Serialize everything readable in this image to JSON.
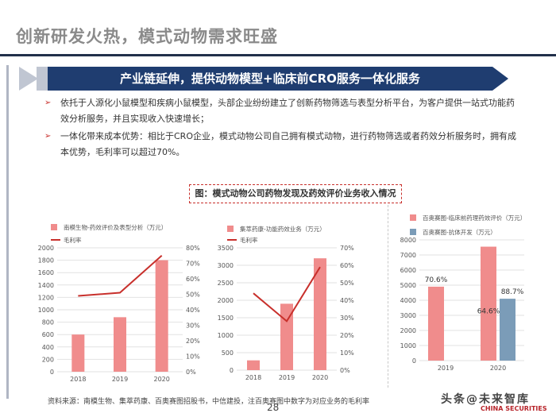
{
  "page": {
    "title": "创新研发火热，模式动物需求旺盛",
    "banner": "产业链延伸，提供动物模型+临床前CRO服务一体化服务",
    "bullets": [
      "依托于人源化小鼠模型和疾病小鼠模型，头部企业纷纷建立了创新药物筛选与表型分析平台，为客户提供一站式功能药效分析服务，并且实现收入快速增长；",
      "一体化带来成本优势：相比于CRO企业，模式动物公司自己拥有模式动物，进行药物筛选或者药效分析服务时，拥有成本优势，毛利率可以超过70%。"
    ],
    "bullet_marker": "➢",
    "figure_caption": "图：模式动物公司药物发现及药效评价业务收入情况",
    "source": "资料来源：南模生物、集萃药康、百奥赛图招股书，中信建投，注百奥赛图中数字为对应业务的毛利率",
    "page_number": "28",
    "watermark": "头条@未来智库",
    "watermark_sub": "CHINA SECURITIES",
    "colors": {
      "bar": "#f08c8c",
      "bar2": "#7b9cb8",
      "line": "#c8302c",
      "banner": "#1f3d70"
    }
  },
  "chart_data": [
    {
      "type": "bar",
      "categories": [
        "2018",
        "2019",
        "2020"
      ],
      "series": [
        {
          "name": "南模生物-药效评价及表型分析（万元）",
          "kind": "bar",
          "values": [
            600,
            880,
            1800
          ]
        },
        {
          "name": "毛利率",
          "kind": "line",
          "axis": "right",
          "values": [
            0.49,
            0.51,
            0.75
          ]
        }
      ],
      "ylim": [
        0,
        2000
      ],
      "yticks": [
        "0",
        "200",
        "400",
        "600",
        "800",
        "1000",
        "1200",
        "1400",
        "1600",
        "1800",
        "2000"
      ],
      "y2lim": [
        0,
        0.8
      ],
      "y2ticks": [
        "0%",
        "10%",
        "20%",
        "30%",
        "40%",
        "50%",
        "60%",
        "70%",
        "80%"
      ]
    },
    {
      "type": "bar",
      "categories": [
        "2018",
        "2019",
        "2020"
      ],
      "series": [
        {
          "name": "集萃药康-功能药效业务（万元）",
          "kind": "bar",
          "values": [
            280,
            1900,
            3200
          ]
        },
        {
          "name": "毛利率",
          "kind": "line",
          "axis": "right",
          "values": [
            0.44,
            0.28,
            0.59
          ]
        }
      ],
      "ylim": [
        0,
        3500
      ],
      "yticks": [
        "0",
        "500",
        "1000",
        "1500",
        "2000",
        "2500",
        "3000",
        "3500"
      ],
      "y2lim": [
        0,
        0.7
      ],
      "y2ticks": [
        "0%",
        "10%",
        "20%",
        "30%",
        "40%",
        "50%",
        "60%",
        "70%"
      ]
    },
    {
      "type": "bar",
      "categories": [
        "2019",
        "2020"
      ],
      "series": [
        {
          "name": "百奥赛图-临床前药理药效评价（万元）",
          "kind": "bar",
          "values": [
            4900,
            7550
          ],
          "labels": [
            "70.6%",
            "64.6%"
          ]
        },
        {
          "name": "百奥赛图-抗体开发（万元）",
          "kind": "bar",
          "values": [
            0,
            4100
          ],
          "labels": [
            "",
            "88.7%"
          ]
        }
      ],
      "ylim": [
        0,
        8000
      ],
      "yticks": [
        "0",
        "1000",
        "2000",
        "3000",
        "4000",
        "5000",
        "6000",
        "7000",
        "8000"
      ]
    }
  ]
}
